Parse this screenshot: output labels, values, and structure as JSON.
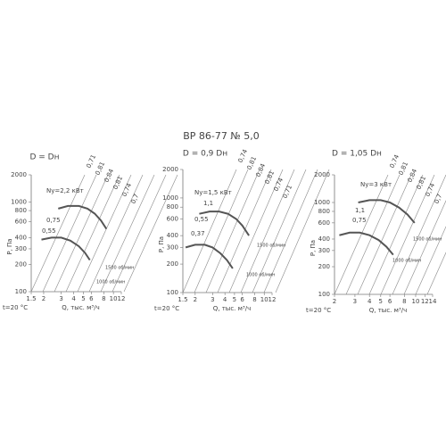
{
  "title": "ВР 86-77 № 5,0",
  "chart_data": [
    {
      "type": "line",
      "title": "D = Dн",
      "xlabel": "Q, тыс. м³/ч",
      "ylabel": "P, Па",
      "note": "t=20 °C",
      "log_scale": true,
      "xlim": [
        1.5,
        12
      ],
      "xticks": [
        1.5,
        2,
        3,
        4,
        5,
        6,
        8,
        10,
        12
      ],
      "ylim": [
        100,
        2000
      ],
      "yticks": [
        100,
        200,
        300,
        400,
        600,
        800,
        1000,
        2000
      ],
      "efficiency_labels": [
        "0,71",
        "0,81",
        "0,84",
        "0,81",
        "0,74",
        "0,7"
      ],
      "power_labels": [
        "Ny=2,2 кВт",
        "0,75",
        "0,55"
      ],
      "series": [
        {
          "name": "1500 об/мин",
          "color": "#555555",
          "x": [
            2.8,
            3.5,
            4.5,
            5.5,
            6.5,
            7.5,
            8.5
          ],
          "y": [
            840,
            900,
            900,
            840,
            740,
            620,
            500
          ]
        },
        {
          "name": "1000 об/мин",
          "color": "#555555",
          "x": [
            1.9,
            2.4,
            3,
            3.7,
            4.5,
            5.2,
            5.8
          ],
          "y": [
            380,
            400,
            400,
            370,
            320,
            270,
            225
          ]
        }
      ]
    },
    {
      "type": "line",
      "title": "D = 0,9 Dн",
      "xlabel": "Q, тыс. м³/ч",
      "ylabel": "P, Па",
      "note": "t=20 °C",
      "log_scale": true,
      "xlim": [
        1.5,
        12
      ],
      "xticks": [
        1.5,
        2,
        3,
        4,
        5,
        6,
        8,
        10,
        12
      ],
      "ylim": [
        100,
        2000
      ],
      "yticks": [
        100,
        200,
        300,
        400,
        600,
        800,
        1000,
        2000
      ],
      "efficiency_labels": [
        "0,74",
        "0,81",
        "0,84",
        "0,81",
        "0,74",
        "0,71"
      ],
      "power_labels": [
        "Ny=1,5 кВт",
        "1,1",
        "0,55",
        "0,37"
      ],
      "series": [
        {
          "name": "1500 об/мин",
          "color": "#555555",
          "x": [
            2.2,
            2.8,
            3.5,
            4.3,
            5.2,
            6,
            7
          ],
          "y": [
            680,
            720,
            720,
            680,
            600,
            510,
            400
          ]
        },
        {
          "name": "1000 об/мин",
          "color": "#555555",
          "x": [
            1.6,
            2,
            2.5,
            3,
            3.6,
            4.2,
            4.8
          ],
          "y": [
            300,
            320,
            320,
            300,
            260,
            220,
            180
          ]
        }
      ]
    },
    {
      "type": "line",
      "title": "D = 1,05 Dн",
      "xlabel": "Q, тыс. м³/ч",
      "ylabel": "P, Па",
      "note": "t=20 °C",
      "log_scale": true,
      "xlim": [
        2,
        14
      ],
      "xticks": [
        2,
        3,
        4,
        5,
        6,
        8,
        10,
        12,
        14
      ],
      "ylim": [
        100,
        2000
      ],
      "yticks": [
        100,
        200,
        300,
        400,
        600,
        800,
        1000,
        2000
      ],
      "efficiency_labels": [
        "0,74",
        "0,81",
        "0,84",
        "0,81",
        "0,74",
        "0,7"
      ],
      "power_labels": [
        "Ny=3 кВт",
        "1,1",
        "0,75"
      ],
      "series": [
        {
          "name": "1500 об/мин",
          "color": "#555555",
          "x": [
            3.2,
            4,
            5,
            6,
            7.2,
            8.5,
            9.8
          ],
          "y": [
            1000,
            1060,
            1060,
            1000,
            880,
            740,
            600
          ]
        },
        {
          "name": "1000 об/мин",
          "color": "#555555",
          "x": [
            2.2,
            2.7,
            3.3,
            4,
            4.8,
            5.6,
            6.4
          ],
          "y": [
            440,
            470,
            470,
            440,
            390,
            330,
            270
          ]
        }
      ]
    }
  ]
}
